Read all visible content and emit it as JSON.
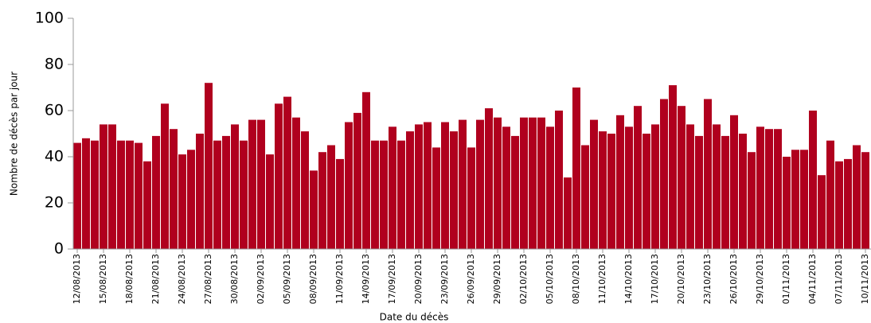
{
  "chart_data": {
    "type": "bar",
    "x_label": "Date du décès",
    "y_label": "Nombre de décès par jour",
    "categories": [
      "12/08/2013",
      null,
      null,
      "15/08/2013",
      null,
      null,
      "18/08/2013",
      null,
      null,
      "21/08/2013",
      null,
      null,
      "24/08/2013",
      null,
      null,
      "27/08/2013",
      null,
      null,
      "30/08/2013",
      null,
      null,
      "02/09/2013",
      null,
      null,
      "05/09/2013",
      null,
      null,
      "08/09/2013",
      null,
      null,
      "11/09/2013",
      null,
      null,
      "14/09/2013",
      null,
      null,
      "17/09/2013",
      null,
      null,
      "20/09/2013",
      null,
      null,
      "23/09/2013",
      null,
      null,
      "26/09/2013",
      null,
      null,
      "29/09/2013",
      null,
      null,
      "02/10/2013",
      null,
      null,
      "05/10/2013",
      null,
      null,
      "08/10/2013",
      null,
      null,
      "11/10/2013",
      null,
      null,
      "14/10/2013",
      null,
      null,
      "17/10/2013",
      null,
      null,
      "20/10/2013",
      null,
      null,
      "23/10/2013",
      null,
      null,
      "26/10/2013",
      null,
      null,
      "29/10/2013",
      null,
      null,
      "01/11/2013",
      null,
      null,
      "04/11/2013",
      null,
      null,
      "07/11/2013",
      null,
      null,
      "10/11/2013"
    ],
    "values": [
      46,
      48,
      47,
      54,
      54,
      47,
      47,
      46,
      38,
      49,
      63,
      52,
      41,
      43,
      50,
      72,
      47,
      49,
      54,
      47,
      56,
      56,
      41,
      63,
      66,
      57,
      51,
      34,
      42,
      45,
      39,
      55,
      59,
      68,
      47,
      47,
      53,
      47,
      51,
      54,
      55,
      44,
      55,
      51,
      56,
      44,
      56,
      61,
      57,
      53,
      49,
      57,
      57,
      57,
      53,
      60,
      31,
      70,
      45,
      56,
      51,
      50,
      58,
      53,
      62,
      50,
      54,
      65,
      71,
      62,
      54,
      49,
      65,
      54,
      49,
      58,
      50,
      42,
      53,
      52,
      52,
      40,
      43,
      43,
      60,
      32,
      47,
      38,
      39,
      45,
      42
    ],
    "color": "#b0001e",
    "ylim": [
      0,
      100
    ],
    "yticks": [
      0,
      20,
      40,
      60,
      80,
      100
    ],
    "grid": false
  }
}
